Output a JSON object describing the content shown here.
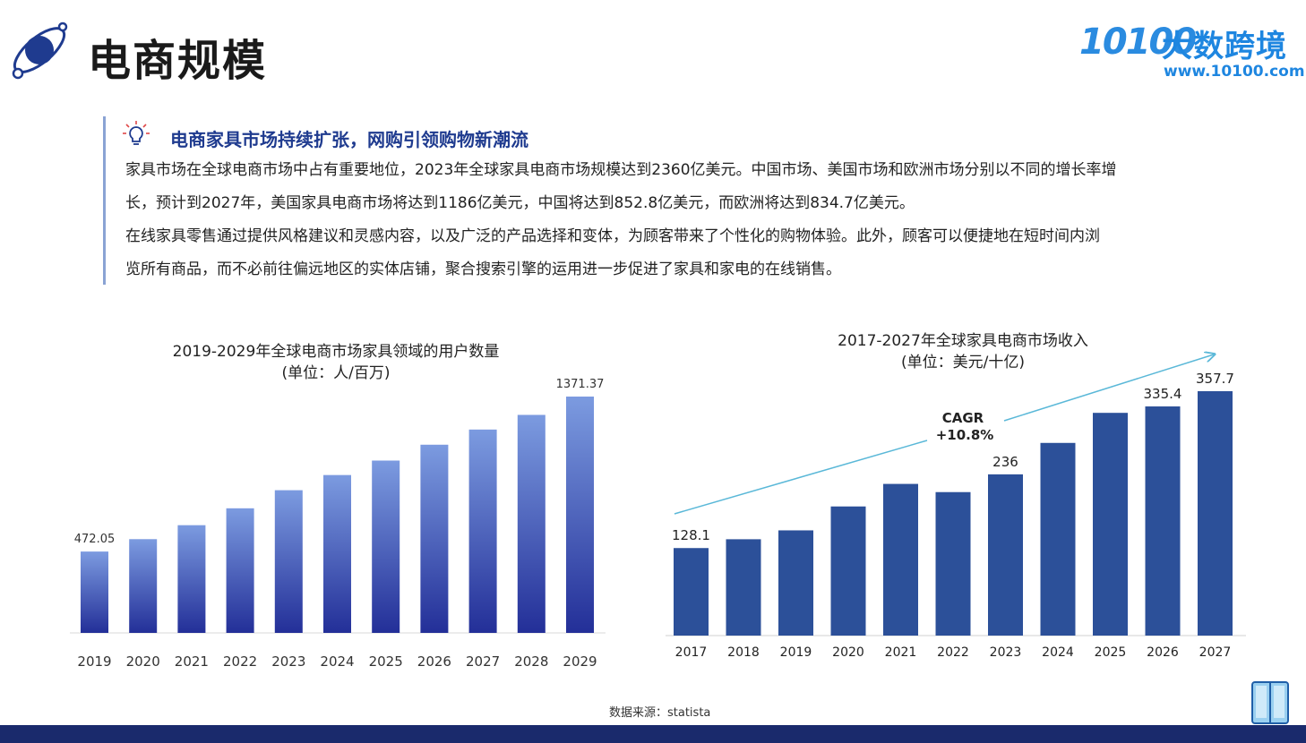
{
  "header": {
    "title": "电商规模",
    "brand_num": "10100",
    "brand_name": "大数跨境",
    "brand_url": "www.10100.com"
  },
  "intro": {
    "headline": "电商家具市场持续扩张，网购引领购物新潮流",
    "lines": [
      "家具市场在全球电商市场中占有重要地位，2023年全球家具电商市场规模达到2360亿美元。中国市场、美国市场和欧洲市场分别以不同的增长率增",
      "长，预计到2027年，美国家具电商市场将达到1186亿美元，中国将达到852.8亿美元，而欧洲将达到834.7亿美元。",
      "在线家具零售通过提供风格建议和灵感内容，以及广泛的产品选择和变体，为顾客带来了个性化的购物体验。此外，顾客可以便捷地在短时间内浏",
      "览所有商品，而不必前往偏远地区的实体店铺，聚合搜索引擎的运用进一步促进了家具和家电的在线销售。"
    ]
  },
  "chart_data": [
    {
      "type": "bar",
      "title": "2019-2029年全球电商市场家具领域的用户数量",
      "subtitle": "(单位：人/百万)",
      "categories": [
        "2019",
        "2020",
        "2021",
        "2022",
        "2023",
        "2024",
        "2025",
        "2026",
        "2027",
        "2028",
        "2029"
      ],
      "values": [
        472.05,
        544,
        625,
        723,
        828,
        916,
        1000,
        1092,
        1180,
        1265,
        1371.37
      ],
      "labels": [
        "472.05",
        "",
        "",
        "",
        "",
        "",
        "",
        "",
        "",
        "",
        "1371.37"
      ],
      "ylim": [
        0,
        1500
      ],
      "grid": false,
      "colors": {
        "top": "#7c9be0",
        "bottom": "#232f98"
      }
    },
    {
      "type": "bar",
      "title": "2017-2027年全球家具电商市场收入",
      "subtitle": "(单位：美元/十亿)",
      "categories": [
        "2017",
        "2018",
        "2019",
        "2020",
        "2021",
        "2022",
        "2023",
        "2024",
        "2025",
        "2026",
        "2027"
      ],
      "values": [
        128.1,
        141,
        154,
        189,
        222,
        210,
        236,
        282,
        326,
        335.4,
        357.7
      ],
      "labels": [
        "128.1",
        "",
        "",
        "",
        "",
        "",
        "236",
        "",
        "",
        "335.4",
        "357.7"
      ],
      "ylim": [
        0,
        380
      ],
      "grid": false,
      "annotation": {
        "line1": "CAGR",
        "line2": "+10.8%"
      },
      "colors": {
        "bar": "#2c5099",
        "arrow": "#5ab8d8"
      }
    }
  ],
  "footer": {
    "source": "数据来源：statista"
  }
}
